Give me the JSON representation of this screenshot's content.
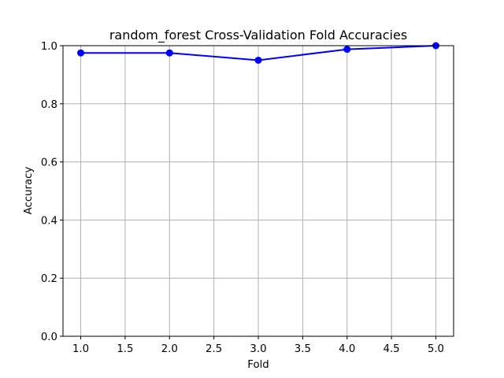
{
  "chart_data": {
    "type": "line",
    "title": "random_forest Cross-Validation Fold Accuracies",
    "xlabel": "Fold",
    "ylabel": "Accuracy",
    "x": [
      1,
      2,
      3,
      4,
      5
    ],
    "series": [
      {
        "values": [
          0.975,
          0.975,
          0.95,
          0.9875,
          1.0
        ],
        "color": "#0000ff",
        "marker": "circle"
      }
    ],
    "xlim": [
      0.8,
      5.2
    ],
    "ylim": [
      0.0,
      1.0
    ],
    "xticks": [
      "1.0",
      "1.5",
      "2.0",
      "2.5",
      "3.0",
      "3.5",
      "4.0",
      "4.5",
      "5.0"
    ],
    "yticks": [
      "0.0",
      "0.2",
      "0.4",
      "0.6",
      "0.8",
      "1.0"
    ],
    "grid": true
  }
}
